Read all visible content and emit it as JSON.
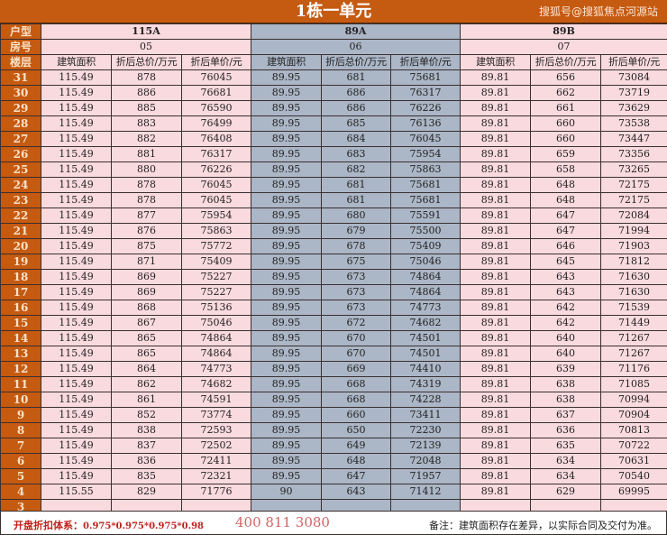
{
  "title": "1栋一单元",
  "labels": {
    "type": "户型",
    "room": "房号",
    "floor": "楼层"
  },
  "columns": [
    "建筑面积",
    "折后总价/万元",
    "折后单价/元"
  ],
  "units": [
    {
      "type": "115A",
      "room": "05",
      "color": "#f9dadf"
    },
    {
      "type": "89A",
      "room": "06",
      "color": "#abb6c6"
    },
    {
      "type": "89B",
      "room": "07",
      "color": "#f9dadf"
    }
  ],
  "rows": [
    {
      "floor": "31",
      "cells": [
        "115.49",
        "878",
        "76045",
        "89.95",
        "681",
        "75681",
        "89.81",
        "656",
        "73084"
      ]
    },
    {
      "floor": "30",
      "cells": [
        "115.49",
        "886",
        "76681",
        "89.95",
        "686",
        "76317",
        "89.81",
        "662",
        "73719"
      ]
    },
    {
      "floor": "29",
      "cells": [
        "115.49",
        "885",
        "76590",
        "89.95",
        "686",
        "76226",
        "89.81",
        "661",
        "73629"
      ]
    },
    {
      "floor": "28",
      "cells": [
        "115.49",
        "883",
        "76499",
        "89.95",
        "685",
        "76136",
        "89.81",
        "660",
        "73538"
      ]
    },
    {
      "floor": "27",
      "cells": [
        "115.49",
        "882",
        "76408",
        "89.95",
        "684",
        "76045",
        "89.81",
        "660",
        "73447"
      ]
    },
    {
      "floor": "26",
      "cells": [
        "115.49",
        "881",
        "76317",
        "89.95",
        "683",
        "75954",
        "89.81",
        "659",
        "73356"
      ]
    },
    {
      "floor": "25",
      "cells": [
        "115.49",
        "880",
        "76226",
        "89.95",
        "682",
        "75863",
        "89.81",
        "658",
        "73265"
      ]
    },
    {
      "floor": "24",
      "cells": [
        "115.49",
        "878",
        "76045",
        "89.95",
        "681",
        "75681",
        "89.81",
        "648",
        "72175"
      ]
    },
    {
      "floor": "23",
      "cells": [
        "115.49",
        "878",
        "76045",
        "89.95",
        "681",
        "75681",
        "89.81",
        "648",
        "72175"
      ]
    },
    {
      "floor": "22",
      "cells": [
        "115.49",
        "877",
        "75954",
        "89.95",
        "680",
        "75591",
        "89.81",
        "647",
        "72084"
      ]
    },
    {
      "floor": "21",
      "cells": [
        "115.49",
        "876",
        "75863",
        "89.95",
        "679",
        "75500",
        "89.81",
        "647",
        "71994"
      ]
    },
    {
      "floor": "20",
      "cells": [
        "115.49",
        "875",
        "75772",
        "89.95",
        "678",
        "75409",
        "89.81",
        "646",
        "71903"
      ]
    },
    {
      "floor": "19",
      "cells": [
        "115.49",
        "871",
        "75409",
        "89.95",
        "675",
        "75046",
        "89.81",
        "645",
        "71812"
      ]
    },
    {
      "floor": "18",
      "cells": [
        "115.49",
        "869",
        "75227",
        "89.95",
        "673",
        "74864",
        "89.81",
        "643",
        "71630"
      ]
    },
    {
      "floor": "17",
      "cells": [
        "115.49",
        "869",
        "75227",
        "89.95",
        "673",
        "74864",
        "89.81",
        "643",
        "71630"
      ]
    },
    {
      "floor": "16",
      "cells": [
        "115.49",
        "868",
        "75136",
        "89.95",
        "673",
        "74773",
        "89.81",
        "642",
        "71539"
      ]
    },
    {
      "floor": "15",
      "cells": [
        "115.49",
        "867",
        "75046",
        "89.95",
        "672",
        "74682",
        "89.81",
        "642",
        "71449"
      ]
    },
    {
      "floor": "14",
      "cells": [
        "115.49",
        "865",
        "74864",
        "89.95",
        "670",
        "74501",
        "89.81",
        "640",
        "71267"
      ]
    },
    {
      "floor": "13",
      "cells": [
        "115.49",
        "865",
        "74864",
        "89.95",
        "670",
        "74501",
        "89.81",
        "640",
        "71267"
      ]
    },
    {
      "floor": "12",
      "cells": [
        "115.49",
        "864",
        "74773",
        "89.95",
        "669",
        "74410",
        "89.81",
        "639",
        "71176"
      ]
    },
    {
      "floor": "11",
      "cells": [
        "115.49",
        "862",
        "74682",
        "89.95",
        "668",
        "74319",
        "89.81",
        "638",
        "71085"
      ]
    },
    {
      "floor": "10",
      "cells": [
        "115.49",
        "861",
        "74591",
        "89.95",
        "668",
        "74228",
        "89.81",
        "638",
        "70994"
      ]
    },
    {
      "floor": "9",
      "cells": [
        "115.49",
        "852",
        "73774",
        "89.95",
        "660",
        "73411",
        "89.81",
        "637",
        "70904"
      ]
    },
    {
      "floor": "8",
      "cells": [
        "115.49",
        "838",
        "72593",
        "89.95",
        "650",
        "72230",
        "89.81",
        "636",
        "70813"
      ]
    },
    {
      "floor": "7",
      "cells": [
        "115.49",
        "837",
        "72502",
        "89.95",
        "649",
        "72139",
        "89.81",
        "635",
        "70722"
      ]
    },
    {
      "floor": "6",
      "cells": [
        "115.49",
        "836",
        "72411",
        "89.95",
        "648",
        "72048",
        "89.81",
        "634",
        "70631"
      ]
    },
    {
      "floor": "5",
      "cells": [
        "115.49",
        "835",
        "72321",
        "89.95",
        "647",
        "71957",
        "89.81",
        "634",
        "70540"
      ]
    },
    {
      "floor": "4",
      "cells": [
        "115.55",
        "829",
        "71776",
        "90",
        "643",
        "71412",
        "89.81",
        "629",
        "69995"
      ]
    },
    {
      "floor": "3",
      "cells": [
        "",
        "",
        "",
        "",
        "",
        "",
        "",
        "",
        ""
      ]
    }
  ],
  "footer": {
    "discount_label": "开盘折扣体系：",
    "discount_value": "0.975*0.975*0.975*0.98",
    "note": "备注：建筑面积存在差异，以实际合同及交付为准。"
  },
  "watermarks": {
    "phone": "400 811 3080",
    "source": "搜狐号@搜狐焦点河源站"
  }
}
